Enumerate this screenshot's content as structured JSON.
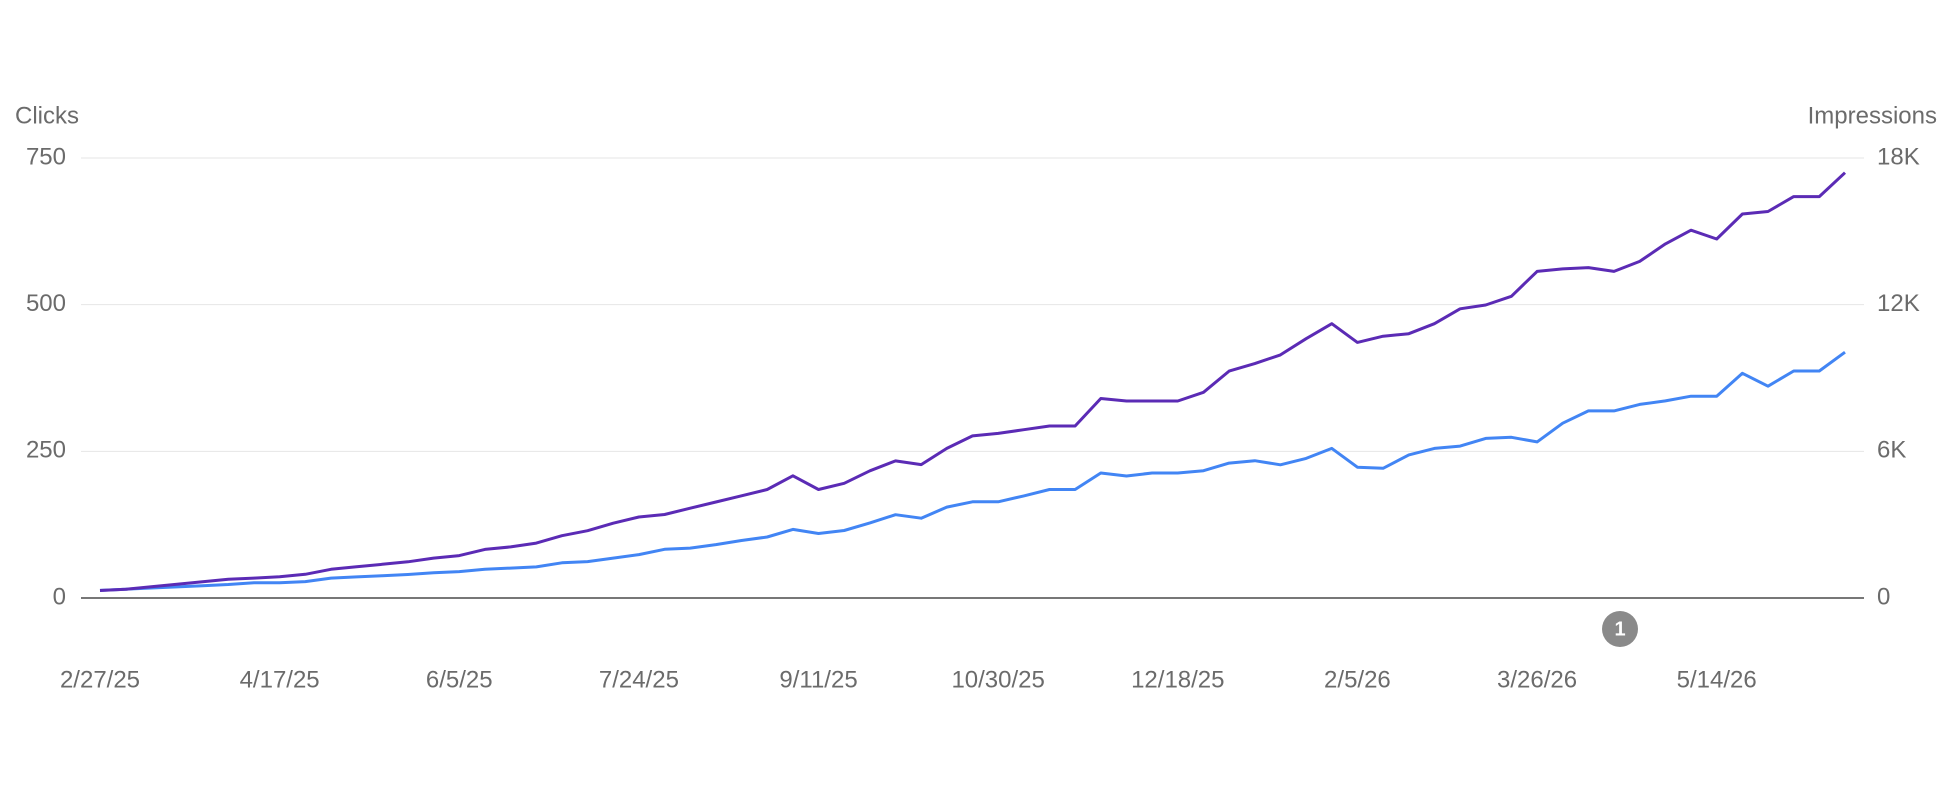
{
  "chart_data": {
    "type": "line",
    "x": [
      "2/27/25",
      "3/6/25",
      "3/13/25",
      "3/20/25",
      "3/27/25",
      "4/3/25",
      "4/10/25",
      "4/17/25",
      "4/24/25",
      "5/1/25",
      "5/8/25",
      "5/15/25",
      "5/22/25",
      "5/29/25",
      "6/5/25",
      "6/12/25",
      "6/19/25",
      "6/26/25",
      "7/3/25",
      "7/10/25",
      "7/17/25",
      "7/24/25",
      "7/31/25",
      "8/7/25",
      "8/14/25",
      "8/21/25",
      "8/28/25",
      "9/4/25",
      "9/11/25",
      "9/18/25",
      "9/25/25",
      "10/2/25",
      "10/9/25",
      "10/16/25",
      "10/23/25",
      "10/30/25",
      "11/6/25",
      "11/13/25",
      "11/20/25",
      "11/27/25",
      "12/4/25",
      "12/11/25",
      "12/18/25",
      "12/25/25",
      "1/1/26",
      "1/8/26",
      "1/15/26",
      "1/22/26",
      "1/29/26",
      "2/5/26",
      "2/12/26",
      "2/19/26",
      "2/26/26",
      "3/5/26",
      "3/12/26",
      "3/19/26",
      "3/26/26",
      "4/2/26",
      "4/9/26",
      "4/16/26",
      "4/23/26",
      "4/30/26",
      "5/7/26",
      "5/14/26",
      "5/21/26",
      "5/28/26",
      "6/4/26",
      "6/11/26",
      "6/18/26"
    ],
    "xlim": [
      "2/27/25",
      "6/18/26"
    ],
    "xticks": [
      "2/27/25",
      "4/17/25",
      "6/5/25",
      "7/24/25",
      "9/11/25",
      "10/30/25",
      "12/18/25",
      "2/5/26",
      "3/26/26",
      "5/14/26"
    ],
    "series": [
      {
        "name": "Clicks",
        "color": "#4285f4",
        "axis": "y",
        "values": [
          13,
          15,
          17,
          19,
          21,
          23,
          26,
          26,
          28,
          34,
          36,
          38,
          40,
          43,
          45,
          49,
          51,
          53,
          60,
          62,
          68,
          74,
          83,
          85,
          91,
          98,
          104,
          117,
          110,
          115,
          128,
          142,
          136,
          155,
          164,
          164,
          174,
          185,
          185,
          213,
          208,
          213,
          213,
          217,
          230,
          234,
          227,
          238,
          255,
          223,
          221,
          244,
          255,
          259,
          272,
          274,
          266,
          298,
          319,
          319,
          330,
          336,
          344,
          344,
          383,
          361,
          387,
          387,
          419
        ]
      },
      {
        "name": "Impressions",
        "color": "#5b2bb5",
        "axis": "y2",
        "values": [
          306,
          357,
          459,
          561,
          663,
          765,
          816,
          867,
          969,
          1173,
          1275,
          1377,
          1479,
          1632,
          1734,
          1989,
          2091,
          2244,
          2550,
          2754,
          3060,
          3315,
          3417,
          3672,
          3927,
          4182,
          4437,
          4998,
          4437,
          4692,
          5202,
          5610,
          5457,
          6120,
          6630,
          6732,
          6885,
          7038,
          7038,
          8160,
          8058,
          8058,
          8058,
          8415,
          9282,
          9588,
          9945,
          10608,
          11220,
          10455,
          10710,
          10812,
          11220,
          11832,
          11985,
          12342,
          13362,
          13464,
          13515,
          13362,
          13770,
          14484,
          15045,
          14688,
          15708,
          15810,
          16422,
          16422,
          17400
        ]
      }
    ],
    "ylim": [
      0,
      750
    ],
    "yticks": [
      0,
      250,
      500,
      750
    ],
    "y2lim": [
      0,
      18000
    ],
    "y2ticks": [
      0,
      {
        "value": 6000,
        "label": "6K"
      },
      {
        "value": 12000,
        "label": "12K"
      },
      {
        "value": 18000,
        "label": "18K"
      }
    ],
    "grid": true,
    "annotations": [
      {
        "text": "1"
      }
    ]
  }
}
